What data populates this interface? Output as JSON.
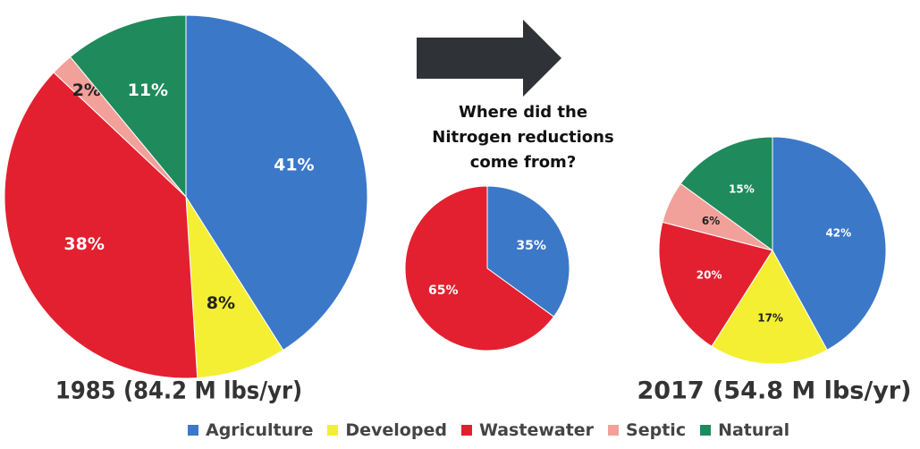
{
  "chart_data": [
    {
      "type": "pie",
      "title": "1985 (84.2 M lbs/yr)",
      "categories": [
        "Agriculture",
        "Developed",
        "Wastewater",
        "Septic",
        "Natural"
      ],
      "values": [
        41,
        8,
        38,
        2,
        11
      ],
      "value_labels": [
        "41%",
        "8%",
        "38%",
        "2%",
        "11%"
      ],
      "colors": [
        "#3b78c8",
        "#f4ef33",
        "#e3202f",
        "#f2a09a",
        "#1f8a5c"
      ]
    },
    {
      "type": "pie",
      "title": "Where did the\nNitrogen reductions\ncome from?",
      "categories": [
        "Agriculture",
        "Wastewater"
      ],
      "values": [
        35,
        65
      ],
      "value_labels": [
        "35%",
        "65%"
      ],
      "colors": [
        "#3b78c8",
        "#e3202f"
      ]
    },
    {
      "type": "pie",
      "title": "2017 (54.8 M lbs/yr)",
      "categories": [
        "Agriculture",
        "Developed",
        "Wastewater",
        "Septic",
        "Natural"
      ],
      "values": [
        42,
        17,
        20,
        6,
        15
      ],
      "value_labels": [
        "42%",
        "17%",
        "20%",
        "6%",
        "15%"
      ],
      "colors": [
        "#3b78c8",
        "#f4ef33",
        "#e3202f",
        "#f2a09a",
        "#1f8a5c"
      ]
    }
  ]
}
